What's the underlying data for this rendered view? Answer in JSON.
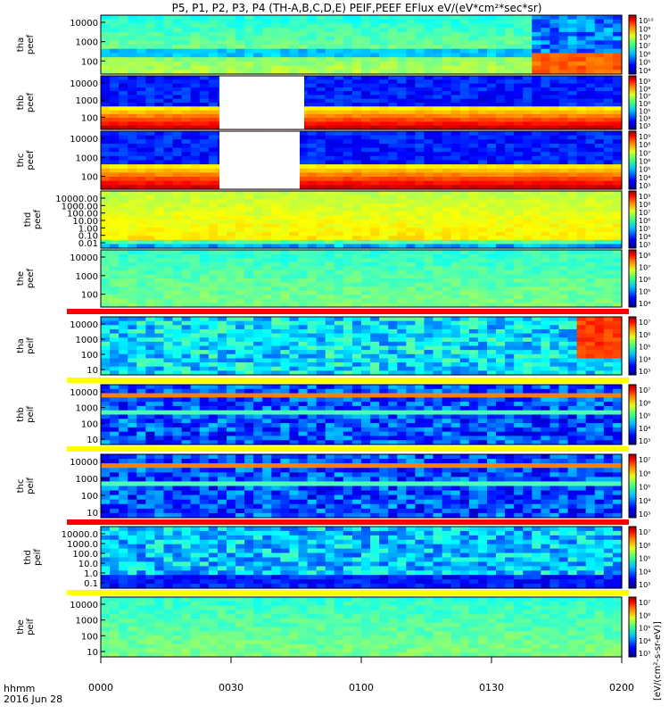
{
  "chart_data": {
    "type": "heatmap",
    "title": "P5, P1, P2, P3, P4 (TH-A,B,C,D,E) PEIF,PEEF EFlux eV/(eV*cm²*sec*sr)",
    "time_axis": {
      "ticks": [
        "0000",
        "0030",
        "0100",
        "0130",
        "0200"
      ],
      "label": "hhmm",
      "date": "2016 Jun 28"
    },
    "colorbar_label": "[eV/(cm²-s-sr-eV)]",
    "panels": [
      {
        "id": "tha_peef",
        "label": [
          "tha",
          "peef"
        ],
        "ticks": [
          "10000",
          "1000",
          "100"
        ],
        "scale": "log",
        "colorbar_ticks": [
          "10¹⁰",
          "10⁹",
          "10⁸",
          "10⁷",
          "10⁶",
          "10⁵",
          "10⁴"
        ]
      },
      {
        "id": "thb_peef",
        "label": [
          "thb",
          "peef"
        ],
        "ticks": [
          "10000",
          "1000",
          "100"
        ],
        "scale": "log",
        "colorbar_ticks": [
          "10⁹",
          "10⁸",
          "10⁷",
          "10⁶",
          "10⁵",
          "10⁴",
          "10³"
        ]
      },
      {
        "id": "thc_peef",
        "label": [
          "thc",
          "peef"
        ],
        "ticks": [
          "10000",
          "1000",
          "100"
        ],
        "scale": "log",
        "colorbar_ticks": [
          "10⁹",
          "10⁸",
          "10⁷",
          "10⁶",
          "10⁵",
          "10⁴",
          "10³"
        ]
      },
      {
        "id": "thd_peef",
        "label": [
          "thd",
          "peef"
        ],
        "ticks": [
          "10000.00",
          "1000.00",
          "100.00",
          "10.00",
          "1.00",
          "0.10",
          "0.01"
        ],
        "scale": "log",
        "colorbar_ticks": [
          "10⁹",
          "10⁸",
          "10⁷",
          "10⁶",
          "10⁵",
          "10⁴",
          "10³"
        ]
      },
      {
        "id": "the_peef",
        "label": [
          "the",
          "peef"
        ],
        "ticks": [
          "10000",
          "1000",
          "100"
        ],
        "scale": "log",
        "colorbar_ticks": [
          "10⁸",
          "10⁷",
          "10⁶",
          "10⁵",
          "10⁴"
        ]
      },
      {
        "id": "tha_peif",
        "label": [
          "tha",
          "peif"
        ],
        "ticks": [
          "10000",
          "1000",
          "100",
          "10"
        ],
        "scale": "log",
        "colorbar_ticks": [
          "10⁷",
          "10⁶",
          "10⁵",
          "10⁴",
          "10³"
        ]
      },
      {
        "id": "thb_peif",
        "label": [
          "thb",
          "peif"
        ],
        "ticks": [
          "10000",
          "1000",
          "100",
          "10"
        ],
        "scale": "log",
        "colorbar_ticks": [
          "10⁷",
          "10⁶",
          "10⁵",
          "10⁴",
          "10³"
        ]
      },
      {
        "id": "thc_peif",
        "label": [
          "thc",
          "peif"
        ],
        "ticks": [
          "10000",
          "1000",
          "100",
          "10"
        ],
        "scale": "log",
        "colorbar_ticks": [
          "10⁷",
          "10⁶",
          "10⁵",
          "10⁴",
          "10³"
        ]
      },
      {
        "id": "thd_peif",
        "label": [
          "thd",
          "peif"
        ],
        "ticks": [
          "10000.0",
          "1000.0",
          "100.0",
          "10.0",
          "1.0",
          "0.1"
        ],
        "scale": "log",
        "colorbar_ticks": [
          "10⁷",
          "10⁶",
          "10⁵",
          "10⁴",
          "10³"
        ]
      },
      {
        "id": "the_peif",
        "label": [
          "the",
          "peif"
        ],
        "ticks": [
          "10000",
          "1000",
          "100",
          "10"
        ],
        "scale": "log",
        "colorbar_ticks": [
          "10⁷",
          "10⁶",
          "10⁵",
          "10⁴",
          "10³"
        ]
      }
    ]
  }
}
